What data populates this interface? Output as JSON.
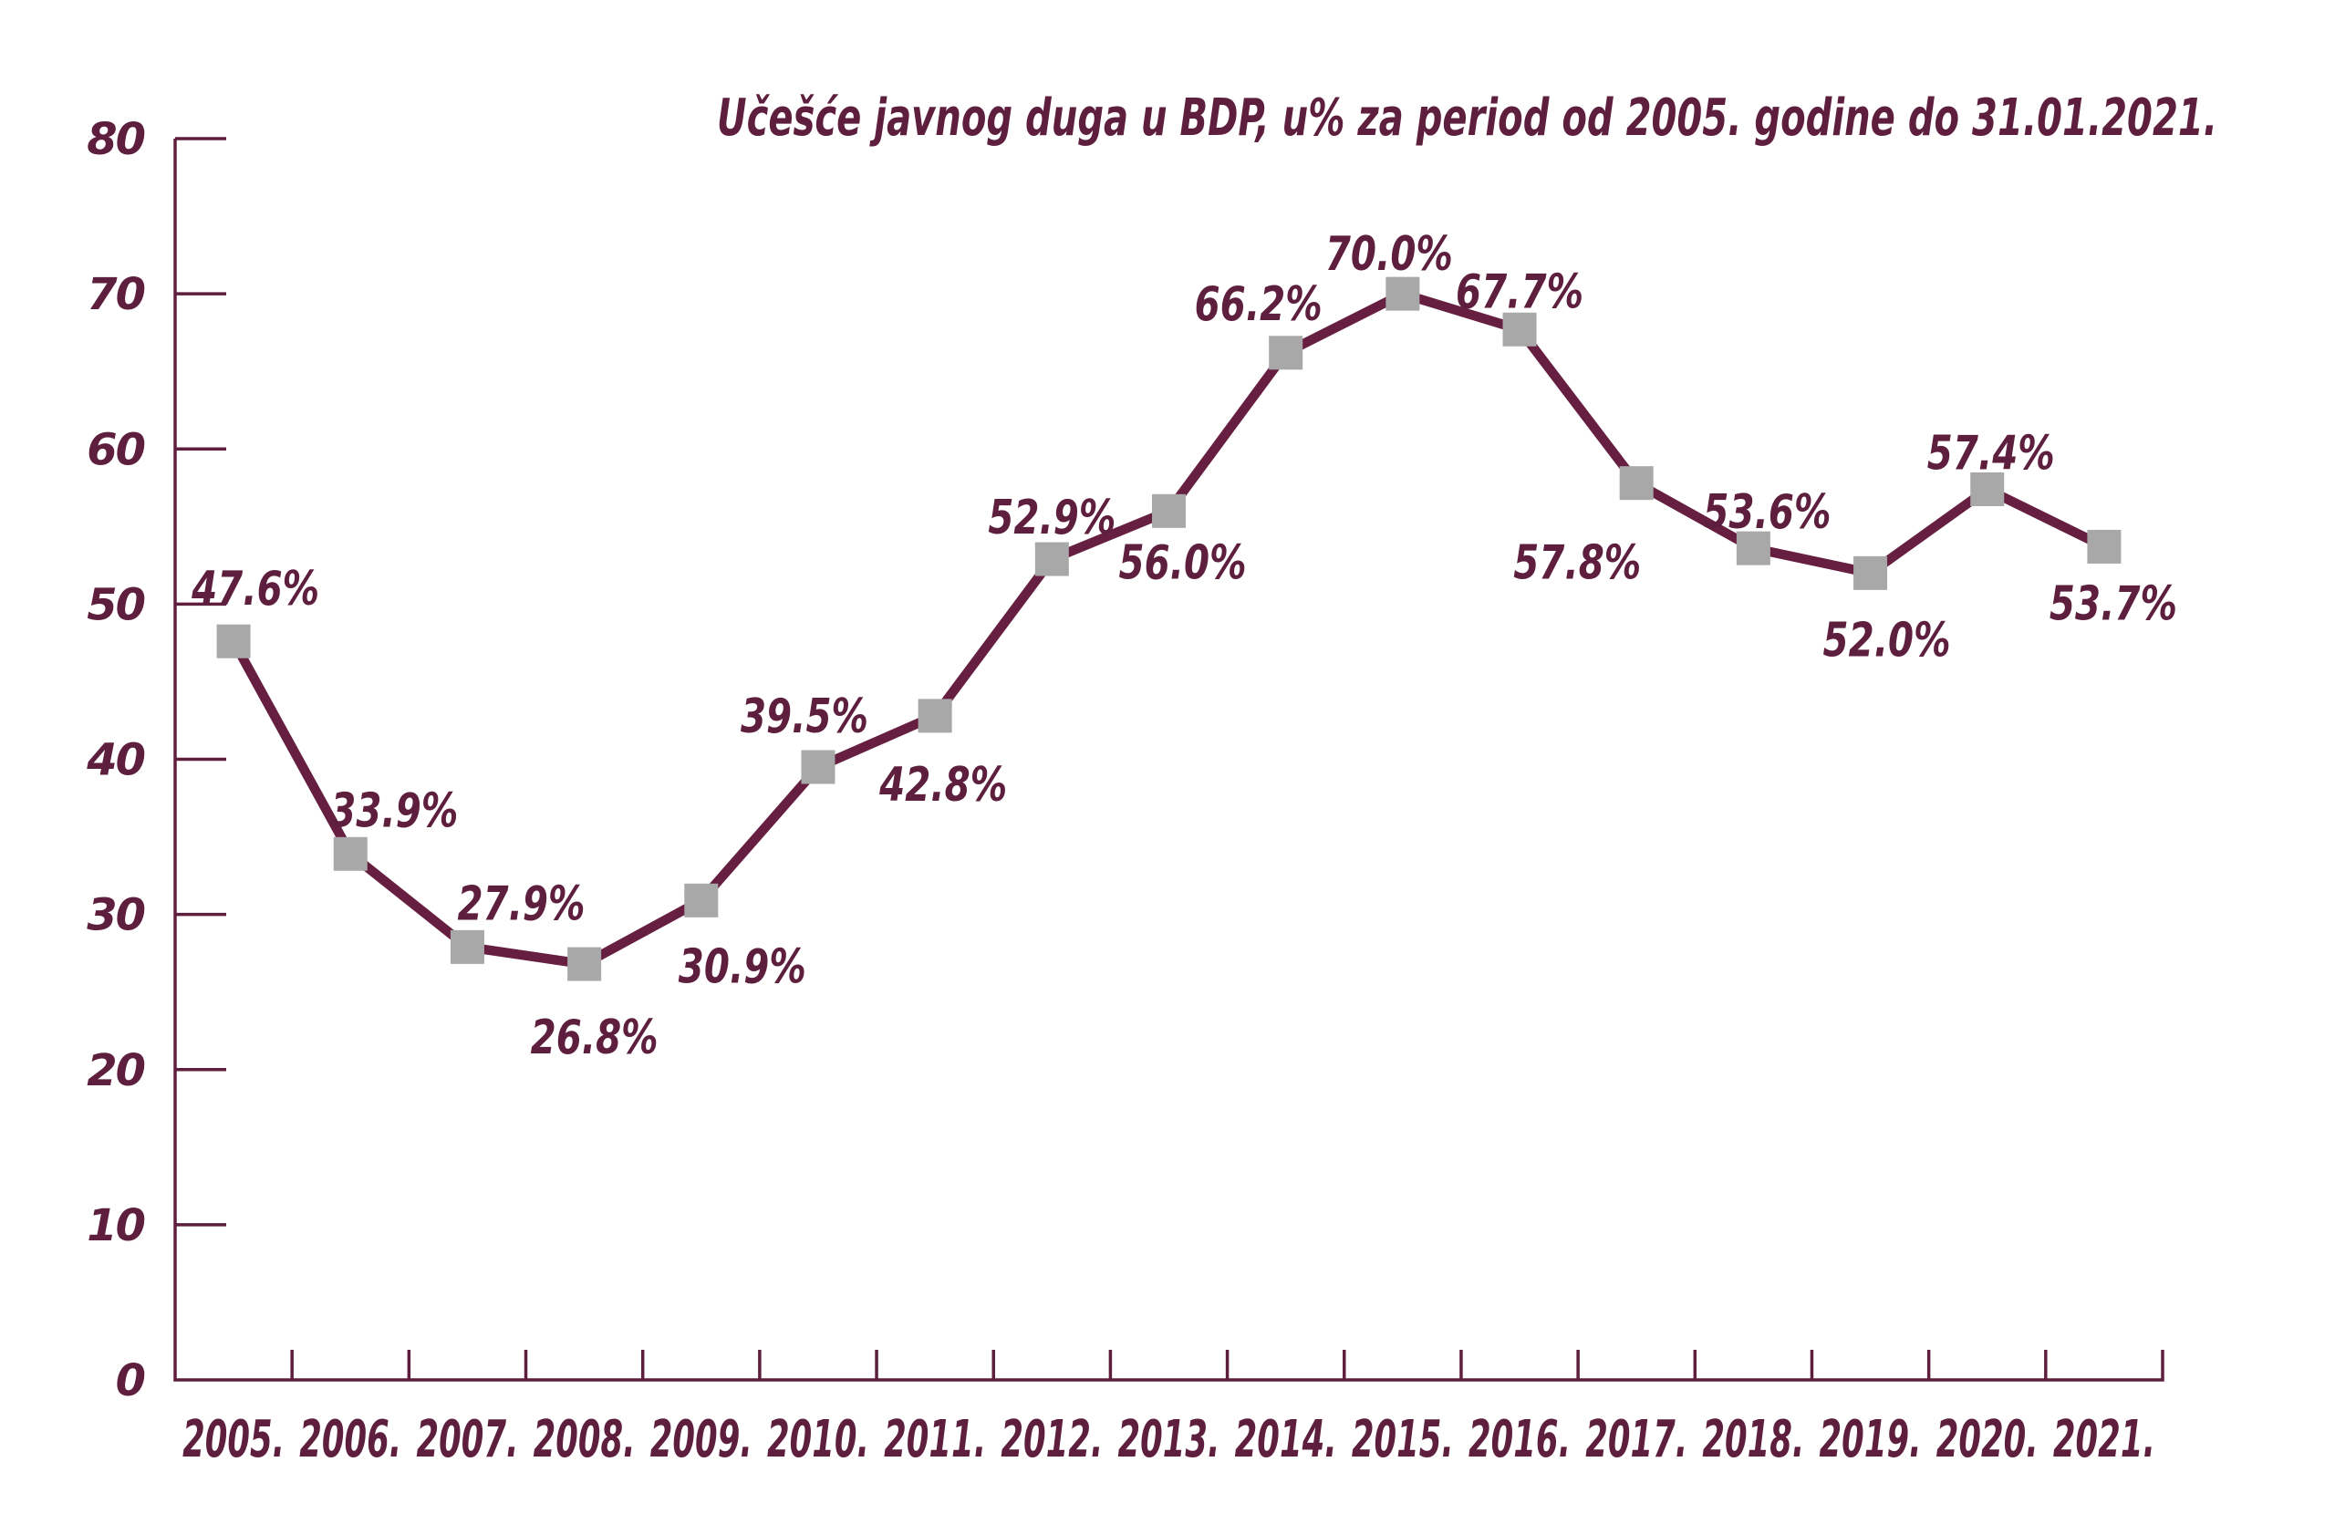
{
  "chart_data": {
    "type": "line",
    "title": "Učešće javnog duga u BDP, u% za period od 2005. godine do 31.01.2021.",
    "categories": [
      "2005.",
      "2006.",
      "2007.",
      "2008.",
      "2009.",
      "2010.",
      "2011.",
      "2012.",
      "2013.",
      "2014.",
      "2015.",
      "2016.",
      "2017.",
      "2018.",
      "2019.",
      "2020.",
      "2021."
    ],
    "series": [
      {
        "name": "Učešće javnog duga u BDP (%)",
        "values": [
          47.6,
          33.9,
          27.9,
          26.8,
          30.9,
          39.5,
          42.8,
          52.9,
          56.0,
          66.2,
          70.0,
          67.7,
          57.8,
          53.6,
          52.0,
          57.4,
          53.7
        ]
      }
    ],
    "point_labels": [
      "47.6%",
      "33.9%",
      "27.9%",
      "26.8%",
      "30.9%",
      "39.5%",
      "42.8%",
      "52.9%",
      "56.0%",
      "66.2%",
      "70.0%",
      "67.7%",
      "57.8%",
      "53.6%",
      "52.0%",
      "57.4%",
      "53.7%"
    ],
    "label_positions": [
      "above",
      "above",
      "above",
      "below",
      "below",
      "above",
      "below",
      "above",
      "below",
      "above",
      "above",
      "above",
      "below",
      "above",
      "below",
      "above",
      "below"
    ],
    "label_dx": [
      24,
      48,
      59,
      11,
      45,
      -15,
      9,
      0,
      15,
      -30,
      -15,
      0,
      -65,
      15,
      18,
      4,
      10
    ],
    "label_dy": [
      -40,
      -30,
      -30,
      98,
      90,
      -38,
      93,
      -28,
      74,
      -36,
      -26,
      -24,
      105,
      -22,
      91,
      -22,
      80
    ],
    "xlabel": "",
    "ylabel": "",
    "yticks": [
      0,
      10,
      20,
      30,
      40,
      50,
      60,
      70,
      80
    ],
    "ylim": [
      0,
      80
    ],
    "grid": false,
    "legend": "none",
    "marker_shape": "square",
    "colors": {
      "line": "#661f41",
      "marker": "#a8a8a8",
      "text": "#5d1f3d",
      "axis": "#5d1f3d",
      "background": "#ffffff"
    }
  }
}
